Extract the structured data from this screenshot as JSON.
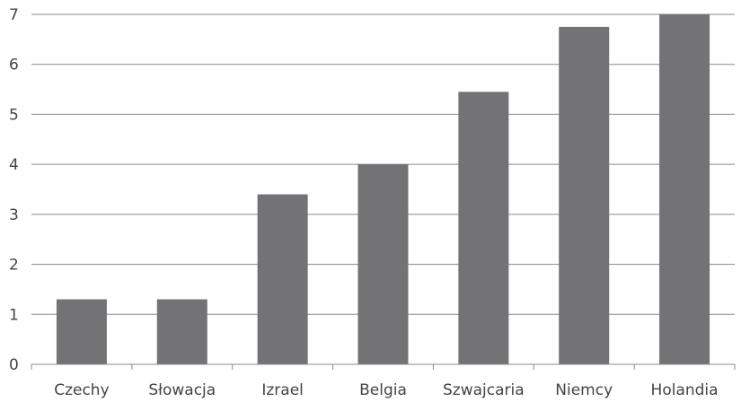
{
  "chart_data": {
    "type": "bar",
    "title": "",
    "xlabel": "",
    "ylabel": "",
    "categories": [
      "Czechy",
      "Słowacja",
      "Izrael",
      "Belgia",
      "Szwajcaria",
      "Niemcy",
      "Holandia"
    ],
    "values": [
      1.3,
      1.3,
      3.4,
      4.0,
      5.45,
      6.75,
      7.0
    ],
    "ylim": [
      0,
      7
    ],
    "yticks": [
      "0",
      "1",
      "2",
      "3",
      "4",
      "5",
      "6",
      "7"
    ],
    "grid": true,
    "colors": {
      "bar": "#737375",
      "grid": "#8a8a8a",
      "text": "#444444"
    }
  }
}
